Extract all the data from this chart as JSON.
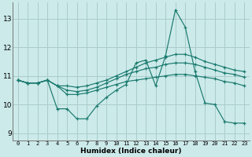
{
  "xlabel": "Humidex (Indice chaleur)",
  "background_color": "#cceaea",
  "grid_color": "#aacccc",
  "line_color": "#1a7a6e",
  "xlim": [
    -0.5,
    23.5
  ],
  "ylim": [
    8.75,
    13.55
  ],
  "xticks": [
    0,
    1,
    2,
    3,
    4,
    5,
    6,
    7,
    8,
    9,
    10,
    11,
    12,
    13,
    14,
    15,
    16,
    17,
    18,
    19,
    20,
    21,
    22,
    23
  ],
  "yticks": [
    9,
    10,
    11,
    12,
    13
  ],
  "series": [
    [
      10.85,
      10.75,
      10.75,
      10.85,
      9.85,
      9.85,
      9.5,
      9.5,
      9.95,
      10.25,
      10.5,
      10.7,
      11.45,
      11.55,
      10.65,
      11.7,
      13.3,
      12.7,
      11.15,
      10.05,
      10.0,
      9.4,
      9.35,
      9.35
    ],
    [
      10.85,
      10.75,
      10.75,
      10.85,
      10.65,
      10.65,
      10.6,
      10.65,
      10.75,
      10.85,
      11.0,
      11.15,
      11.3,
      11.45,
      11.55,
      11.65,
      11.75,
      11.75,
      11.65,
      11.5,
      11.4,
      11.3,
      11.2,
      11.15
    ],
    [
      10.85,
      10.75,
      10.75,
      10.85,
      10.65,
      10.5,
      10.45,
      10.5,
      10.6,
      10.75,
      10.9,
      11.05,
      11.15,
      11.25,
      11.3,
      11.4,
      11.45,
      11.45,
      11.4,
      11.3,
      11.2,
      11.1,
      11.05,
      10.95
    ],
    [
      10.85,
      10.75,
      10.75,
      10.85,
      10.65,
      10.35,
      10.35,
      10.4,
      10.5,
      10.6,
      10.7,
      10.8,
      10.85,
      10.9,
      10.95,
      11.0,
      11.05,
      11.05,
      11.0,
      10.95,
      10.9,
      10.8,
      10.75,
      10.65
    ]
  ]
}
